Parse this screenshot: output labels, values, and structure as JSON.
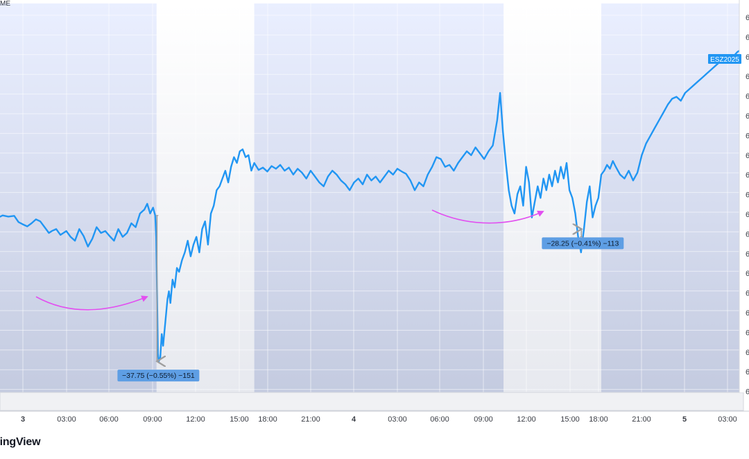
{
  "header": {
    "exchange_fragment": "ME"
  },
  "brand": {
    "label": "dingView"
  },
  "chart_data": {
    "type": "line",
    "symbol": "ESZ2025",
    "line_color": "#2196f3",
    "x_tick_labels": [
      {
        "label": "3",
        "bold": true
      },
      {
        "label": "03:00"
      },
      {
        "label": "06:00"
      },
      {
        "label": "09:00"
      },
      {
        "label": "12:00"
      },
      {
        "label": "15:00"
      },
      {
        "label": "18:00"
      },
      {
        "label": "21:00"
      },
      {
        "label": "4",
        "bold": true
      },
      {
        "label": "03:00"
      },
      {
        "label": "06:00"
      },
      {
        "label": "09:00"
      },
      {
        "label": "12:00"
      },
      {
        "label": "15:00"
      },
      {
        "label": "18:00"
      },
      {
        "label": "21:00"
      },
      {
        "label": "5",
        "bold": true
      },
      {
        "label": "03:00"
      }
    ],
    "y_axis_label_fragment": "6",
    "session_shading": [
      {
        "from_hour": -3.0,
        "to_hour": 9.25,
        "shaded": true
      },
      {
        "from_hour": 9.25,
        "to_hour": 16.0,
        "shaded": false
      },
      {
        "from_hour": 16.0,
        "to_hour": 33.25,
        "shaded": true
      },
      {
        "from_hour": 33.25,
        "to_hour": 40.0,
        "shaded": false
      },
      {
        "from_hour": 40.0,
        "to_hour": 53.0,
        "shaded": true
      }
    ],
    "series_path": [
      [
        -3.0,
        0.555
      ],
      [
        -2.6,
        0.56
      ],
      [
        -2.2,
        0.548
      ],
      [
        -1.8,
        0.552
      ],
      [
        -1.4,
        0.545
      ],
      [
        -1.0,
        0.548
      ],
      [
        -0.6,
        0.546
      ],
      [
        -0.3,
        0.562
      ],
      [
        0.0,
        0.568
      ],
      [
        0.3,
        0.573
      ],
      [
        0.6,
        0.565
      ],
      [
        0.9,
        0.555
      ],
      [
        1.2,
        0.56
      ],
      [
        1.5,
        0.575
      ],
      [
        1.8,
        0.59
      ],
      [
        2.0,
        0.585
      ],
      [
        2.3,
        0.58
      ],
      [
        2.6,
        0.595
      ],
      [
        3.0,
        0.585
      ],
      [
        3.3,
        0.6
      ],
      [
        3.6,
        0.61
      ],
      [
        3.9,
        0.58
      ],
      [
        4.2,
        0.598
      ],
      [
        4.5,
        0.625
      ],
      [
        4.8,
        0.605
      ],
      [
        5.1,
        0.575
      ],
      [
        5.4,
        0.59
      ],
      [
        5.7,
        0.585
      ],
      [
        6.0,
        0.598
      ],
      [
        6.3,
        0.61
      ],
      [
        6.6,
        0.58
      ],
      [
        6.9,
        0.6
      ],
      [
        7.2,
        0.59
      ],
      [
        7.5,
        0.565
      ],
      [
        7.8,
        0.575
      ],
      [
        8.1,
        0.54
      ],
      [
        8.4,
        0.53
      ],
      [
        8.6,
        0.515
      ],
      [
        8.8,
        0.54
      ],
      [
        9.0,
        0.525
      ],
      [
        9.15,
        0.545
      ],
      [
        9.22,
        0.6
      ],
      [
        9.28,
        0.75
      ],
      [
        9.34,
        0.9
      ],
      [
        9.4,
        0.92
      ],
      [
        9.5,
        0.91
      ],
      [
        9.6,
        0.85
      ],
      [
        9.7,
        0.88
      ],
      [
        9.8,
        0.84
      ],
      [
        9.9,
        0.8
      ],
      [
        10.0,
        0.76
      ],
      [
        10.1,
        0.74
      ],
      [
        10.2,
        0.77
      ],
      [
        10.35,
        0.71
      ],
      [
        10.5,
        0.73
      ],
      [
        10.65,
        0.68
      ],
      [
        10.8,
        0.69
      ],
      [
        11.0,
        0.66
      ],
      [
        11.2,
        0.64
      ],
      [
        11.4,
        0.61
      ],
      [
        11.6,
        0.65
      ],
      [
        11.8,
        0.62
      ],
      [
        12.0,
        0.6
      ],
      [
        12.2,
        0.64
      ],
      [
        12.4,
        0.58
      ],
      [
        12.6,
        0.56
      ],
      [
        12.8,
        0.62
      ],
      [
        13.0,
        0.54
      ],
      [
        13.2,
        0.52
      ],
      [
        13.4,
        0.48
      ],
      [
        13.6,
        0.47
      ],
      [
        13.8,
        0.45
      ],
      [
        14.0,
        0.43
      ],
      [
        14.2,
        0.46
      ],
      [
        14.4,
        0.42
      ],
      [
        14.6,
        0.395
      ],
      [
        14.8,
        0.41
      ],
      [
        15.0,
        0.38
      ],
      [
        15.2,
        0.375
      ],
      [
        15.4,
        0.395
      ],
      [
        15.6,
        0.39
      ],
      [
        15.8,
        0.43
      ],
      [
        16.0,
        0.41
      ],
      [
        16.3,
        0.428
      ],
      [
        16.6,
        0.422
      ],
      [
        16.9,
        0.432
      ],
      [
        17.2,
        0.418
      ],
      [
        17.5,
        0.425
      ],
      [
        17.8,
        0.415
      ],
      [
        18.1,
        0.43
      ],
      [
        18.4,
        0.422
      ],
      [
        18.7,
        0.44
      ],
      [
        19.0,
        0.425
      ],
      [
        19.3,
        0.435
      ],
      [
        19.6,
        0.45
      ],
      [
        19.9,
        0.43
      ],
      [
        20.2,
        0.445
      ],
      [
        20.5,
        0.46
      ],
      [
        20.8,
        0.47
      ],
      [
        21.1,
        0.445
      ],
      [
        21.4,
        0.43
      ],
      [
        21.7,
        0.44
      ],
      [
        22.0,
        0.455
      ],
      [
        22.3,
        0.465
      ],
      [
        22.6,
        0.48
      ],
      [
        22.9,
        0.46
      ],
      [
        23.2,
        0.45
      ],
      [
        23.5,
        0.465
      ],
      [
        23.8,
        0.44
      ],
      [
        24.1,
        0.455
      ],
      [
        24.4,
        0.445
      ],
      [
        24.7,
        0.46
      ],
      [
        25.0,
        0.445
      ],
      [
        25.3,
        0.43
      ],
      [
        25.6,
        0.44
      ],
      [
        25.9,
        0.425
      ],
      [
        26.2,
        0.432
      ],
      [
        26.5,
        0.438
      ],
      [
        26.8,
        0.455
      ],
      [
        27.1,
        0.48
      ],
      [
        27.4,
        0.46
      ],
      [
        27.7,
        0.47
      ],
      [
        28.0,
        0.44
      ],
      [
        28.3,
        0.42
      ],
      [
        28.6,
        0.395
      ],
      [
        28.9,
        0.4
      ],
      [
        29.2,
        0.42
      ],
      [
        29.5,
        0.415
      ],
      [
        29.8,
        0.43
      ],
      [
        30.1,
        0.41
      ],
      [
        30.4,
        0.395
      ],
      [
        30.7,
        0.38
      ],
      [
        31.0,
        0.39
      ],
      [
        31.3,
        0.37
      ],
      [
        31.6,
        0.385
      ],
      [
        31.9,
        0.4
      ],
      [
        32.2,
        0.38
      ],
      [
        32.5,
        0.365
      ],
      [
        32.8,
        0.3
      ],
      [
        33.0,
        0.23
      ],
      [
        33.2,
        0.33
      ],
      [
        33.4,
        0.41
      ],
      [
        33.6,
        0.48
      ],
      [
        33.8,
        0.52
      ],
      [
        34.0,
        0.54
      ],
      [
        34.2,
        0.49
      ],
      [
        34.4,
        0.47
      ],
      [
        34.6,
        0.52
      ],
      [
        34.8,
        0.42
      ],
      [
        35.0,
        0.46
      ],
      [
        35.2,
        0.55
      ],
      [
        35.4,
        0.51
      ],
      [
        35.6,
        0.47
      ],
      [
        35.8,
        0.5
      ],
      [
        36.0,
        0.45
      ],
      [
        36.2,
        0.48
      ],
      [
        36.4,
        0.44
      ],
      [
        36.6,
        0.47
      ],
      [
        36.8,
        0.43
      ],
      [
        37.0,
        0.46
      ],
      [
        37.2,
        0.42
      ],
      [
        37.4,
        0.45
      ],
      [
        37.6,
        0.41
      ],
      [
        37.8,
        0.48
      ],
      [
        38.0,
        0.5
      ],
      [
        38.2,
        0.54
      ],
      [
        38.4,
        0.6
      ],
      [
        38.6,
        0.64
      ],
      [
        38.8,
        0.58
      ],
      [
        39.0,
        0.51
      ],
      [
        39.2,
        0.47
      ],
      [
        39.4,
        0.55
      ],
      [
        39.6,
        0.52
      ],
      [
        39.8,
        0.5
      ],
      [
        40.0,
        0.44
      ],
      [
        40.2,
        0.43
      ],
      [
        40.4,
        0.415
      ],
      [
        40.6,
        0.425
      ],
      [
        40.8,
        0.405
      ],
      [
        41.0,
        0.42
      ],
      [
        41.3,
        0.44
      ],
      [
        41.6,
        0.45
      ],
      [
        41.9,
        0.43
      ],
      [
        42.2,
        0.455
      ],
      [
        42.5,
        0.435
      ],
      [
        42.8,
        0.39
      ],
      [
        43.1,
        0.36
      ],
      [
        43.4,
        0.34
      ],
      [
        43.7,
        0.32
      ],
      [
        44.0,
        0.3
      ],
      [
        44.3,
        0.28
      ],
      [
        44.6,
        0.26
      ],
      [
        44.9,
        0.245
      ],
      [
        45.2,
        0.24
      ],
      [
        45.5,
        0.25
      ],
      [
        45.8,
        0.23
      ],
      [
        46.1,
        0.22
      ],
      [
        46.4,
        0.21
      ],
      [
        46.7,
        0.2
      ],
      [
        47.0,
        0.19
      ],
      [
        47.3,
        0.18
      ],
      [
        47.6,
        0.17
      ],
      [
        47.9,
        0.16
      ],
      [
        48.2,
        0.15
      ],
      [
        48.5,
        0.145
      ],
      [
        48.8,
        0.14
      ],
      [
        49.1,
        0.138
      ],
      [
        49.4,
        0.125
      ],
      [
        49.7,
        0.118
      ],
      [
        50.0,
        0.11
      ],
      [
        50.3,
        0.1
      ],
      [
        50.6,
        0.09
      ],
      [
        50.9,
        0.08
      ],
      [
        51.2,
        0.075
      ],
      [
        51.5,
        0.07
      ],
      [
        51.8,
        0.062
      ],
      [
        52.1,
        0.055
      ],
      [
        52.4,
        0.05
      ],
      [
        52.7,
        0.06
      ],
      [
        53.0,
        0.055
      ]
    ],
    "drawdowns": [
      {
        "from_hour": 9.15,
        "to_hour": 9.4,
        "label": "−37.75 (−0.55%) −151"
      },
      {
        "from_hour": 38.45,
        "to_hour": 38.8,
        "label": "−28.25 (−0.41%) −113"
      }
    ],
    "annotation_arrow_color": "#e24ff0",
    "drawdown_arrow_color": "#9e9e9e",
    "label_box_color": "#5e9ee4"
  }
}
